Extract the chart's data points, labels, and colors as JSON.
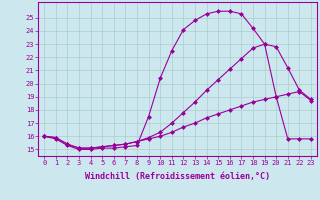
{
  "xlabel": "Windchill (Refroidissement éolien,°C)",
  "bg_color": "#cce8ee",
  "line_color": "#990099",
  "grid_color": "#aacccc",
  "xlim": [
    -0.5,
    23.5
  ],
  "ylim": [
    14.5,
    26.2
  ],
  "yticks": [
    15,
    16,
    17,
    18,
    19,
    20,
    21,
    22,
    23,
    24,
    25
  ],
  "xticks": [
    0,
    1,
    2,
    3,
    4,
    5,
    6,
    7,
    8,
    9,
    10,
    11,
    12,
    13,
    14,
    15,
    16,
    17,
    18,
    19,
    20,
    21,
    22,
    23
  ],
  "line1_x": [
    0,
    1,
    2,
    3,
    4,
    5,
    6,
    7,
    8,
    9,
    10,
    11,
    12,
    13,
    14,
    15,
    16,
    17,
    18,
    19,
    20,
    21,
    22,
    23
  ],
  "line1_y": [
    16.0,
    15.8,
    15.3,
    15.0,
    15.0,
    15.1,
    15.1,
    15.2,
    15.3,
    17.5,
    20.4,
    22.5,
    24.1,
    24.8,
    25.3,
    25.5,
    25.5,
    25.3,
    24.2,
    23.0,
    19.0,
    15.8,
    15.8,
    15.8
  ],
  "line2_x": [
    0,
    1,
    2,
    3,
    4,
    5,
    6,
    7,
    8,
    9,
    10,
    11,
    12,
    13,
    14,
    15,
    16,
    17,
    18,
    19,
    20,
    21,
    22,
    23
  ],
  "line2_y": [
    16.0,
    15.9,
    15.4,
    15.1,
    15.1,
    15.2,
    15.3,
    15.4,
    15.6,
    15.9,
    16.3,
    17.0,
    17.8,
    18.6,
    19.5,
    20.3,
    21.1,
    21.9,
    22.7,
    23.0,
    22.8,
    21.2,
    19.5,
    18.8
  ],
  "line3_x": [
    0,
    1,
    2,
    3,
    4,
    5,
    6,
    7,
    8,
    9,
    10,
    11,
    12,
    13,
    14,
    15,
    16,
    17,
    18,
    19,
    20,
    21,
    22,
    23
  ],
  "line3_y": [
    16.0,
    15.9,
    15.4,
    15.1,
    15.1,
    15.2,
    15.3,
    15.4,
    15.6,
    15.8,
    16.0,
    16.3,
    16.7,
    17.0,
    17.4,
    17.7,
    18.0,
    18.3,
    18.6,
    18.8,
    19.0,
    19.2,
    19.4,
    18.7
  ],
  "marker": "D",
  "marker_size": 2.0,
  "line_width": 0.8,
  "tick_fontsize": 5.0,
  "xlabel_fontsize": 6.0
}
